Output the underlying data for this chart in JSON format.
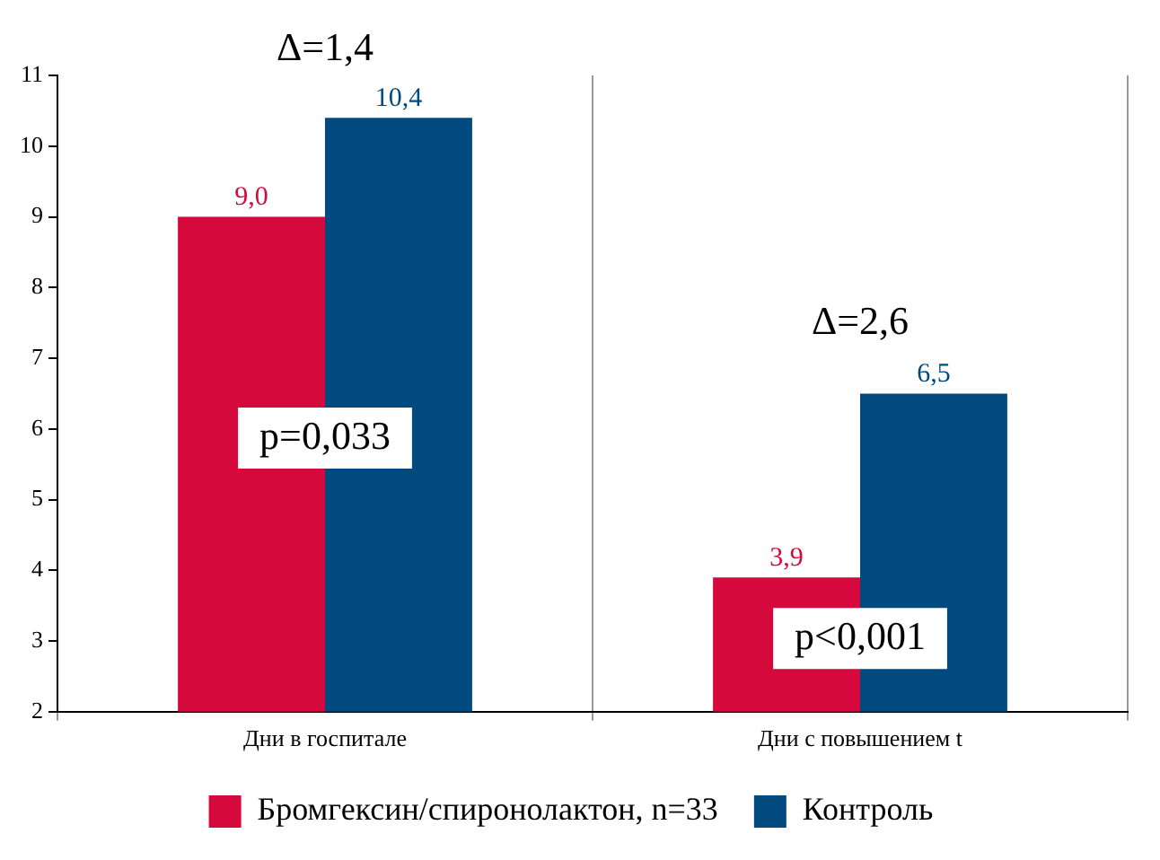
{
  "chart_data": {
    "type": "bar",
    "categories": [
      "Дни в госпитале",
      "Дни с повышением t"
    ],
    "series": [
      {
        "name": "Бромгексин/спиронолактон, n=33",
        "color": "#d5093b",
        "values": [
          9.0,
          3.9
        ],
        "value_labels": [
          "9,0",
          "3,9"
        ]
      },
      {
        "name": "Контроль",
        "color": "#004a80",
        "values": [
          10.4,
          6.5
        ],
        "value_labels": [
          "10,4",
          "6,5"
        ]
      }
    ],
    "ylim": [
      2,
      11
    ],
    "yticks": [
      2,
      3,
      4,
      5,
      6,
      7,
      8,
      9,
      10,
      11
    ],
    "grid": "x",
    "legend": "bottom",
    "annotations": [
      "Δ=1,4",
      "Δ=2,6",
      "p=0,033",
      "p<0,001"
    ]
  }
}
